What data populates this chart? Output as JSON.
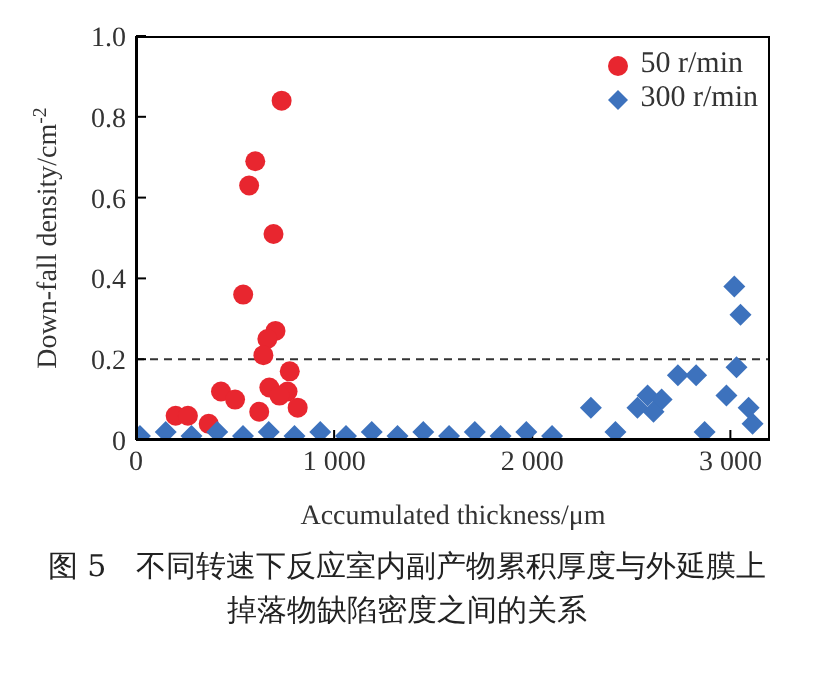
{
  "chart_data": {
    "type": "scatter",
    "xlabel": "Accumulated thickness/μm",
    "ylabel": "Down-fall density/cm$^{-2}$",
    "xlim": [
      0,
      3200
    ],
    "ylim": [
      0,
      1.0
    ],
    "xticks": [
      0,
      {
        "value": 1000,
        "label": "1 000"
      },
      {
        "value": 2000,
        "label": "2 000"
      },
      {
        "value": 3000,
        "label": "3 000"
      }
    ],
    "yticks": [
      0,
      0.2,
      0.4,
      0.6,
      0.8,
      {
        "value": 1,
        "label": "1.0"
      }
    ],
    "grid": false,
    "legend": "top right",
    "ref_lines": [
      {
        "axis": "y",
        "value": 0.2,
        "color": "#333333",
        "line_style": "dashed"
      }
    ],
    "annotations": [
      "图 5　不同转速下反应室内副产物累积厚度与外延膜上掉落物缺陷密度之间的关系"
    ],
    "series": [
      {
        "name": "50 r/min",
        "color": "#e8262f",
        "marker": "circle",
        "x": [
          735,
          602,
          571,
          694,
          541,
          704,
          663,
          643,
          776,
          673,
          765,
          724,
          816,
          429,
          500,
          622,
          200,
          262,
          367
        ],
        "values": [
          0.84,
          0.69,
          0.63,
          0.51,
          0.36,
          0.27,
          0.25,
          0.21,
          0.17,
          0.13,
          0.12,
          0.11,
          0.08,
          0.12,
          0.1,
          0.07,
          0.06,
          0.06,
          0.04
        ]
      },
      {
        "name": "300 r/min",
        "color": "#3d72bd",
        "marker": "diamond",
        "x": [
          20,
          150,
          280,
          410,
          540,
          670,
          800,
          930,
          1060,
          1190,
          1320,
          1450,
          1580,
          1710,
          1840,
          1970,
          2100,
          2420,
          2870,
          3020,
          3051,
          3031,
          2735,
          2827,
          2980,
          2296,
          2531,
          2582,
          2653,
          3092,
          3112,
          2612
        ],
        "values": [
          0.01,
          0.02,
          0.01,
          0.02,
          0.01,
          0.02,
          0.01,
          0.02,
          0.01,
          0.02,
          0.01,
          0.02,
          0.01,
          0.02,
          0.01,
          0.02,
          0.01,
          0.02,
          0.02,
          0.38,
          0.31,
          0.18,
          0.16,
          0.16,
          0.11,
          0.08,
          0.08,
          0.11,
          0.1,
          0.08,
          0.04,
          0.07
        ]
      }
    ]
  }
}
